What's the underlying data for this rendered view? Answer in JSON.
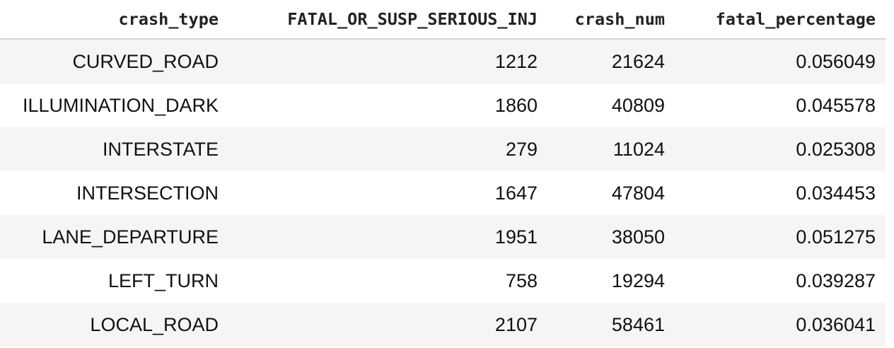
{
  "table": {
    "columns": [
      "crash_type",
      "FATAL_OR_SUSP_SERIOUS_INJ",
      "crash_num",
      "fatal_percentage"
    ],
    "rows": [
      [
        "CURVED_ROAD",
        "1212",
        "21624",
        "0.056049"
      ],
      [
        "ILLUMINATION_DARK",
        "1860",
        "40809",
        "0.045578"
      ],
      [
        "INTERSTATE",
        "279",
        "11024",
        "0.025308"
      ],
      [
        "INTERSECTION",
        "1647",
        "47804",
        "0.034453"
      ],
      [
        "LANE_DEPARTURE",
        "1951",
        "38050",
        "0.051275"
      ],
      [
        "LEFT_TURN",
        "758",
        "19294",
        "0.039287"
      ],
      [
        "LOCAL_ROAD",
        "2107",
        "58461",
        "0.036041"
      ]
    ]
  }
}
